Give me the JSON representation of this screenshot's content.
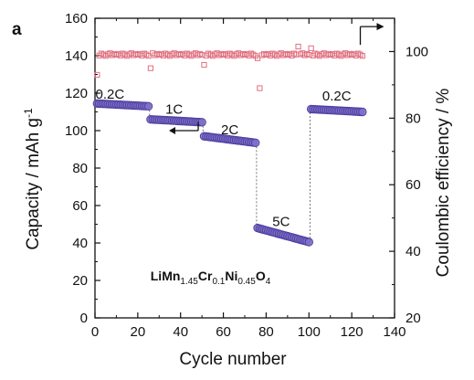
{
  "chart_data": {
    "type": "scatter",
    "panel_label": "a",
    "xlabel": "Cycle number",
    "ylabel_left": "Capacity / mAh g",
    "ylabel_left_sup": "-1",
    "ylabel_right": "Coulombic efficiency / %",
    "xlim": [
      0,
      140
    ],
    "ylim_left": [
      0,
      160
    ],
    "ylim_right": [
      20,
      110
    ],
    "x_ticks": [
      0,
      20,
      40,
      60,
      80,
      100,
      120,
      140
    ],
    "y_left_ticks": [
      0,
      20,
      40,
      60,
      80,
      100,
      120,
      140,
      160
    ],
    "y_right_ticks": [
      20,
      40,
      60,
      80,
      100
    ],
    "formula": {
      "parts": [
        {
          "text": "LiMn",
          "sub": false
        },
        {
          "text": "1.45",
          "sub": true
        },
        {
          "text": "Cr",
          "sub": false
        },
        {
          "text": "0.1",
          "sub": true
        },
        {
          "text": "Ni",
          "sub": false
        },
        {
          "text": "0.45",
          "sub": true
        },
        {
          "text": "O",
          "sub": false
        },
        {
          "text": "4",
          "sub": true
        }
      ]
    },
    "rate_labels": [
      {
        "text": "0.2C",
        "x": 7,
        "y": 117
      },
      {
        "text": "1C",
        "x": 37,
        "y": 109
      },
      {
        "text": "2C",
        "x": 63,
        "y": 98
      },
      {
        "text": "5C",
        "x": 87,
        "y": 49
      },
      {
        "text": "0.2C",
        "x": 113,
        "y": 116
      }
    ],
    "capacity_segments": [
      {
        "rate": "0.2C",
        "x_start": 1,
        "x_end": 25,
        "start_value": 114.5,
        "end_value": 113
      },
      {
        "rate": "1C",
        "x_start": 26,
        "x_end": 50,
        "start_value": 106,
        "end_value": 104.5
      },
      {
        "rate": "2C",
        "x_start": 51,
        "x_end": 75,
        "start_value": 97,
        "end_value": 93.5
      },
      {
        "rate": "5C",
        "x_start": 76,
        "x_end": 100,
        "start_value": 48,
        "end_value": 40.5
      },
      {
        "rate": "0.2C",
        "x_start": 101,
        "x_end": 125,
        "start_value": 111.5,
        "end_value": 110
      }
    ],
    "efficiency": {
      "x_start": 1,
      "x_end": 125,
      "typical": 99,
      "outliers": [
        {
          "x": 1,
          "y": 93
        },
        {
          "x": 26,
          "y": 95
        },
        {
          "x": 51,
          "y": 96
        },
        {
          "x": 76,
          "y": 98
        },
        {
          "x": 77,
          "y": 89
        },
        {
          "x": 101,
          "y": 101
        },
        {
          "x": 95,
          "y": 101.5
        }
      ]
    },
    "colors": {
      "capacity_marker": "#8070c8",
      "capacity_edge": "#4c3fa0",
      "efficiency_marker": "#e07080",
      "axis": "#111111"
    }
  }
}
